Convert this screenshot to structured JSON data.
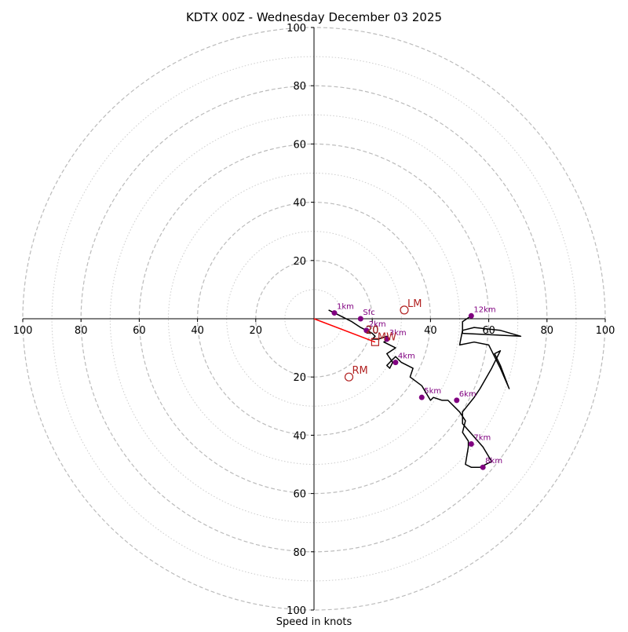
{
  "chart_data": {
    "type": "hodograph",
    "title": "KDTX 00Z - Wednesday December 03 2025",
    "xlabel": "Speed in knots",
    "max_speed": 100,
    "ring_labels": [
      "20",
      "40",
      "60",
      "80",
      "100"
    ],
    "x_tick_labels": [
      "100",
      "80",
      "60",
      "40",
      "20",
      "20",
      "40",
      "60",
      "80",
      "100"
    ],
    "y_tick_labels": [
      "100",
      "80",
      "60",
      "40",
      "20",
      "20",
      "40",
      "60",
      "80",
      "100"
    ],
    "colors": {
      "trace": "#000000",
      "height_marker": "#800080",
      "storm_motion": "#b22222",
      "shear_vector": "#ff0000",
      "solid_ring": "#bbbbbb",
      "dotted_ring": "#cccccc"
    },
    "trace": {
      "u": [
        5,
        7,
        10,
        13,
        16,
        20,
        21,
        20,
        22,
        25,
        26,
        24,
        28,
        25,
        27,
        26,
        25,
        28,
        30,
        34,
        33,
        37,
        40,
        41,
        44,
        46,
        48,
        50,
        52,
        51,
        53,
        53,
        52,
        54,
        57,
        61,
        58,
        51,
        51,
        55,
        57,
        61,
        64,
        62,
        63,
        64,
        67,
        64,
        60,
        55,
        50,
        51,
        55,
        64,
        71,
        51,
        51,
        54
      ],
      "v": [
        3,
        2,
        0.5,
        -1,
        -3,
        -5,
        -6,
        -7,
        -7,
        -6,
        -7,
        -8,
        -10,
        -12,
        -15,
        -17,
        -16,
        -13,
        -15,
        -17,
        -20,
        -23,
        -28,
        -27,
        -28,
        -28,
        -30,
        -32,
        -35,
        -39,
        -42,
        -44,
        -50,
        -51,
        -51,
        -49,
        -44,
        -36,
        -32,
        -27,
        -24,
        -17,
        -11,
        -12,
        -14,
        -16,
        -24,
        -17,
        -9,
        -8,
        -9,
        -4,
        -3,
        -4,
        -6,
        -5,
        -1,
        1
      ]
    },
    "height_markers": [
      {
        "label": "Sfc",
        "u": 16,
        "v": 0
      },
      {
        "label": "1km",
        "u": 7,
        "v": 2
      },
      {
        "label": "2km",
        "u": 18,
        "v": -4
      },
      {
        "label": "3km",
        "u": 25,
        "v": -7
      },
      {
        "label": "4km",
        "u": 28,
        "v": -15
      },
      {
        "label": "5km",
        "u": 37,
        "v": -27
      },
      {
        "label": "6km",
        "u": 49,
        "v": -28
      },
      {
        "label": "7km",
        "u": 54,
        "v": -43
      },
      {
        "label": "8km",
        "u": 58,
        "v": -51
      },
      {
        "label": "12km",
        "u": 54,
        "v": 1
      }
    ],
    "storm_motions": [
      {
        "label": "LM",
        "u": 31,
        "v": 3
      },
      {
        "label": "RM",
        "u": 12,
        "v": -20
      }
    ],
    "mean_wind": {
      "label": "MW",
      "u": 21,
      "v": -8
    },
    "extra_label": {
      "label": "20",
      "u": 20,
      "v": -5
    },
    "shear_vector": {
      "u": 21,
      "v": -8
    }
  }
}
